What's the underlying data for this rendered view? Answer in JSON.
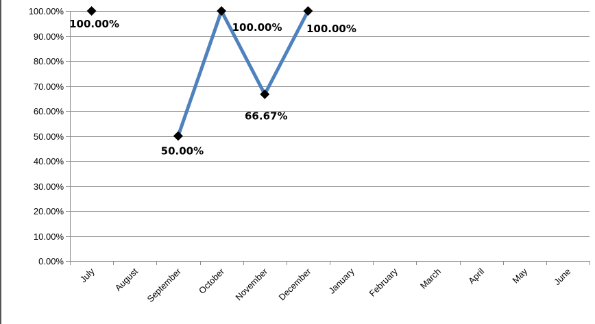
{
  "chart_data": {
    "type": "line",
    "categories": [
      "July",
      "August",
      "September",
      "October",
      "November",
      "December",
      "January",
      "February",
      "March",
      "April",
      "May",
      "June"
    ],
    "series": [
      {
        "values": [
          100.0,
          null,
          50.0,
          100.0,
          66.67,
          100.0,
          null,
          null,
          null,
          null,
          null,
          null
        ],
        "data_labels": [
          "100.00%",
          null,
          "50.00%",
          "100.00%",
          "66.67%",
          "100.00%",
          null,
          null,
          null,
          null,
          null,
          null
        ],
        "color": "#4F81BD",
        "marker_color": "#000000",
        "marker": "diamond"
      }
    ],
    "yticks": [
      "0.00%",
      "10.00%",
      "20.00%",
      "30.00%",
      "40.00%",
      "50.00%",
      "60.00%",
      "70.00%",
      "80.00%",
      "90.00%",
      "100.00%"
    ],
    "ylim": [
      0,
      100
    ],
    "grid": true,
    "gridline_color": "#8C8C8C",
    "title": "",
    "xlabel": "",
    "ylabel": ""
  }
}
